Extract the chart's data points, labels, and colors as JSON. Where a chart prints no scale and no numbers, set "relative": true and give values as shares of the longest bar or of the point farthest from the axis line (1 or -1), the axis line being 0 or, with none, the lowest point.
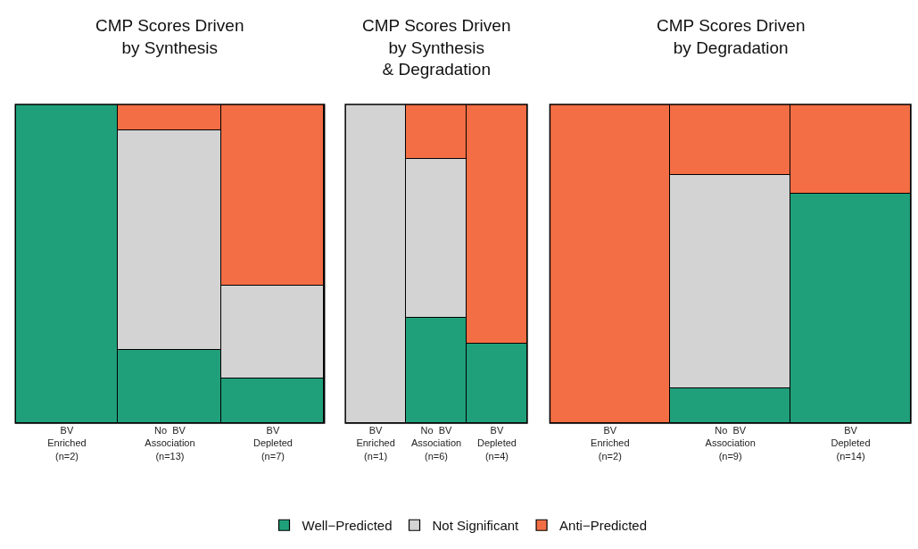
{
  "chart_data": [
    {
      "type": "bar",
      "title": "CMP Scores Driven\nby Synthesis",
      "stacked": true,
      "relative": true,
      "legend": "bottom",
      "categories": [
        "BV\nEnriched\n(n=2)",
        "No  BV\nAssociation\n(n=13)",
        "BV\nDepleted\n(n=7)"
      ],
      "series": [
        {
          "name": "Well−Predicted",
          "color": "#20a07a",
          "values": [
            1,
            0.23,
            0.14
          ]
        },
        {
          "name": "Not Significant",
          "color": "#d3d3d3",
          "values": [
            null,
            0.69,
            0.29
          ]
        },
        {
          "name": "Anti−Predicted",
          "color": "#f36e45",
          "values": [
            null,
            0.08,
            0.57
          ]
        }
      ]
    },
    {
      "type": "bar",
      "title": "CMP Scores Driven\nby Synthesis\n& Degradation",
      "stacked": true,
      "relative": true,
      "categories": [
        "BV\nEnriched\n(n=1)",
        "No  BV\nAssociation\n(n=6)",
        "BV\nDepleted\n(n=4)"
      ],
      "series": [
        {
          "color": "#20a07a",
          "values": [
            null,
            0.33,
            0.25
          ]
        },
        {
          "color": "#d3d3d3",
          "values": [
            1,
            0.5,
            null
          ]
        },
        {
          "color": "#f36e45",
          "values": [
            null,
            0.17,
            0.75
          ]
        }
      ]
    },
    {
      "type": "bar",
      "title": "CMP Scores Driven\nby Degradation",
      "stacked": true,
      "relative": true,
      "categories": [
        "BV\nEnriched\n(n=2)",
        "No  BV\nAssociation\n(n=9)",
        "BV\nDepleted\n(n=14)"
      ],
      "series": [
        {
          "color": "#20a07a",
          "values": [
            null,
            0.11,
            0.72
          ]
        },
        {
          "color": "#d3d3d3",
          "values": [
            null,
            0.67,
            null
          ]
        },
        {
          "color": "#f36e45",
          "values": [
            1,
            0.22,
            0.28
          ]
        }
      ]
    }
  ]
}
